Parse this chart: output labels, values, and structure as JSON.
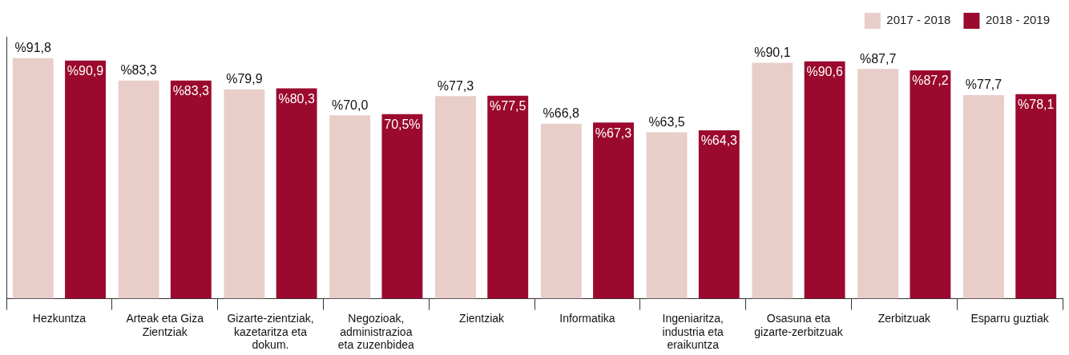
{
  "chart_data": {
    "type": "bar",
    "categories": [
      "Hezkuntza",
      "Arteak eta Giza Zientziak",
      "Gizarte-zientziak, kazetaritza eta dokum.",
      "Negozioak, administrazioa eta zuzenbidea",
      "Zientziak",
      "Informatika",
      "Ingeniaritza, industria eta eraikuntza",
      "Osasuna eta gizarte-zerbitzuak",
      "Zerbitzuak",
      "Esparru guztiak"
    ],
    "series": [
      {
        "name": "2017 - 2018",
        "color": "#e8cdc9",
        "values": [
          91.8,
          83.3,
          79.9,
          70.0,
          77.3,
          66.8,
          63.5,
          90.1,
          87.7,
          77.7
        ],
        "value_labels": [
          "%91,8",
          "%83,3",
          "%79,9",
          "%70,0",
          "%77,3",
          "%66,8",
          "%63,5",
          "%90,1",
          "%87,7",
          "%77,7"
        ]
      },
      {
        "name": "2018 - 2019",
        "color": "#9b0a2e",
        "values": [
          90.9,
          83.3,
          80.3,
          70.5,
          77.5,
          67.3,
          64.3,
          90.6,
          87.2,
          78.1
        ],
        "value_labels": [
          "%90,9",
          "%83,3",
          "%80,3",
          "70,5%",
          "%77,5",
          "%67,3",
          "%64,3",
          "%90,6",
          "%87,2",
          "%78,1"
        ]
      }
    ],
    "ylim": [
      0,
      100
    ],
    "legend": "top right",
    "grid": false
  }
}
